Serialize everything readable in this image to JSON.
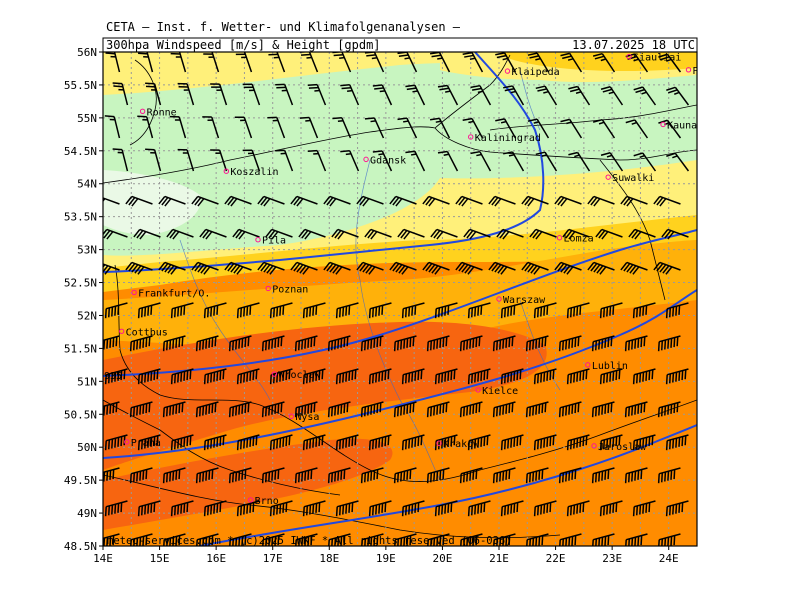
{
  "header": {
    "title": "CETA — Inst. f. Wetter- und Klimafolgenanalysen —",
    "subtitle": "300hpa Windspeed [m/s] & Height [gpdm]",
    "datetime": "13.07.2025 18 UTC"
  },
  "copyright": "meteo-services.com * (c)2025 IWKF * All rights reserved (06-036)",
  "lon_ticks": [
    "14E",
    "15E",
    "16E",
    "17E",
    "18E",
    "19E",
    "20E",
    "21E",
    "22E",
    "23E",
    "24E"
  ],
  "lat_ticks": [
    "56N",
    "55.5N",
    "55N",
    "54.5N",
    "54N",
    "53.5N",
    "53N",
    "52.5N",
    "52N",
    "51.5N",
    "51N",
    "50.5N",
    "50N",
    "49.5N",
    "49N",
    "48.5N"
  ],
  "contour_label": "935",
  "cities": [
    {
      "name": "Siauliai",
      "lon": 23.3,
      "lat": 55.93
    },
    {
      "name": "Panevezys",
      "lon": 24.35,
      "lat": 55.73
    },
    {
      "name": "Klaipeda",
      "lon": 21.15,
      "lat": 55.71
    },
    {
      "name": "Ronne",
      "lon": 14.7,
      "lat": 55.1
    },
    {
      "name": "Kaunas",
      "lon": 23.9,
      "lat": 54.9
    },
    {
      "name": "Kaliningrad",
      "lon": 20.5,
      "lat": 54.71
    },
    {
      "name": "Gdansk",
      "lon": 18.65,
      "lat": 54.37
    },
    {
      "name": "Koszalin",
      "lon": 16.18,
      "lat": 54.19
    },
    {
      "name": "Suwalki",
      "lon": 22.93,
      "lat": 54.1
    },
    {
      "name": "Pila",
      "lon": 16.74,
      "lat": 53.15
    },
    {
      "name": "Lomza",
      "lon": 22.07,
      "lat": 53.18
    },
    {
      "name": "Poznan",
      "lon": 16.92,
      "lat": 52.41
    },
    {
      "name": "Frankfurt/O.",
      "lon": 14.55,
      "lat": 52.35
    },
    {
      "name": "Warszaw",
      "lon": 21.0,
      "lat": 52.25
    },
    {
      "name": "Cottbus",
      "lon": 14.33,
      "lat": 51.76
    },
    {
      "name": "Lublin",
      "lon": 22.57,
      "lat": 51.25
    },
    {
      "name": "Wroclaw",
      "lon": 17.03,
      "lat": 51.11
    },
    {
      "name": "Kielce",
      "lon": 20.63,
      "lat": 50.87
    },
    {
      "name": "Nysa",
      "lon": 17.33,
      "lat": 50.47
    },
    {
      "name": "Praha",
      "lon": 14.42,
      "lat": 50.08
    },
    {
      "name": "Krakow",
      "lon": 19.94,
      "lat": 50.06
    },
    {
      "name": "Jaroslaw",
      "lon": 22.68,
      "lat": 50.02
    },
    {
      "name": "Brno",
      "lon": 16.61,
      "lat": 49.2
    }
  ],
  "colors": {
    "very_light_green": "#eaf9e6",
    "light_green": "#c8f5c0",
    "light_yellow": "#fff07a",
    "yellow": "#ffd21e",
    "light_orange": "#ffb10a",
    "orange": "#ff8c00",
    "dark_orange": "#f76510",
    "contour": "#2148e0",
    "grid": "#999999"
  }
}
